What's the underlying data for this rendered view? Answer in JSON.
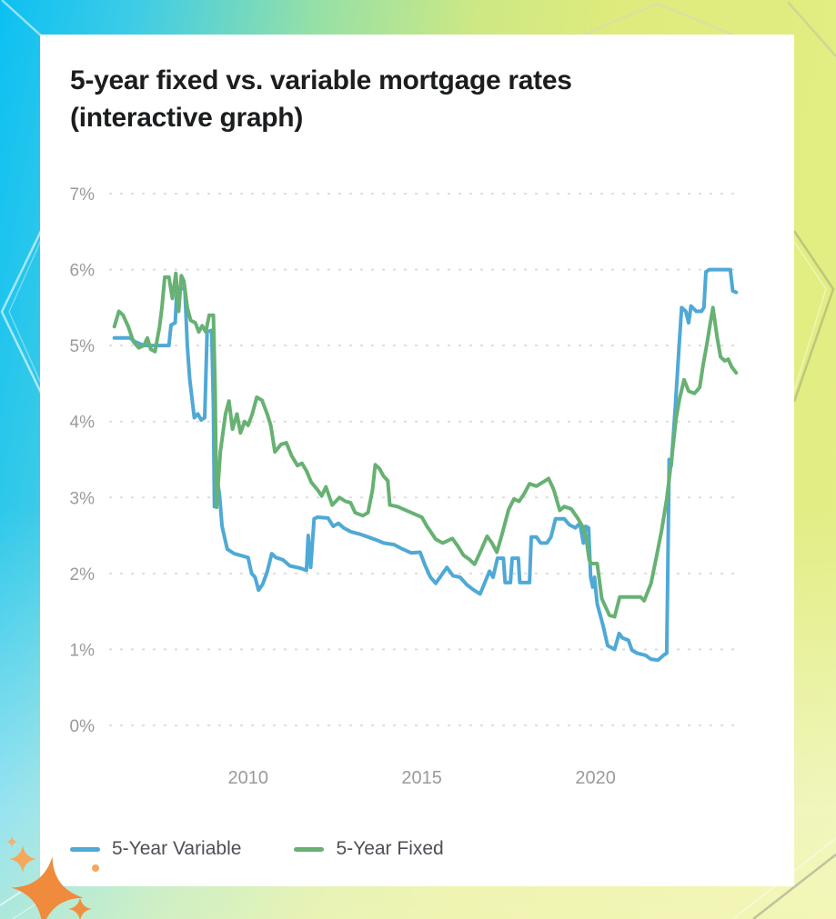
{
  "title": {
    "line1": "5-year fixed vs. variable mortgage rates",
    "line2": "(interactive graph)"
  },
  "colors": {
    "variable_line": "#4fa9d6",
    "fixed_line": "#67b173",
    "grid": "#d9d9d9",
    "axis_label": "#9a9a9f",
    "title_text": "#1b1d1f",
    "legend_text": "#4c5056",
    "card_background": "#ffffff",
    "backdrop_cyan": "#0cc0f2",
    "backdrop_yellow_green": "#dfeb7c",
    "sparkle_orange": "#f08a3c"
  },
  "decorations": {
    "icons": [
      "sparkle-star-icon",
      "chevron-pattern"
    ],
    "description": "gradient backdrop with faceted chevron lines and orange sparkle stars at bottom-left card corner"
  },
  "chart_data": {
    "type": "line",
    "title": "5-year fixed vs. variable mortgage rates (interactive graph)",
    "xlabel": "",
    "ylabel": "",
    "xlim": [
      2006.0,
      2024.2
    ],
    "ylim": [
      0,
      7
    ],
    "grid": "horizontal dashed gridlines at each 1%",
    "legend_position": "bottom-left",
    "yticks": [
      {
        "label": "7%",
        "value": 7
      },
      {
        "label": "6%",
        "value": 6
      },
      {
        "label": "5%",
        "value": 5
      },
      {
        "label": "4%",
        "value": 4
      },
      {
        "label": "3%",
        "value": 3
      },
      {
        "label": "2%",
        "value": 2
      },
      {
        "label": "1%",
        "value": 1
      },
      {
        "label": "0%",
        "value": 0
      }
    ],
    "xticks": [
      {
        "label": "2010",
        "value": 2010
      },
      {
        "label": "2015",
        "value": 2015
      },
      {
        "label": "2020",
        "value": 2020
      }
    ],
    "series": [
      {
        "name": "5-Year Variable",
        "color": "#4fa9d6",
        "points": [
          [
            2006.15,
            5.1
          ],
          [
            2006.6,
            5.1
          ],
          [
            2006.75,
            5.05
          ],
          [
            2007.0,
            5.0
          ],
          [
            2007.55,
            5.0
          ],
          [
            2007.72,
            5.0
          ],
          [
            2007.78,
            5.27
          ],
          [
            2007.9,
            5.3
          ],
          [
            2007.95,
            5.75
          ],
          [
            2008.18,
            5.75
          ],
          [
            2008.25,
            5.0
          ],
          [
            2008.32,
            4.55
          ],
          [
            2008.45,
            4.05
          ],
          [
            2008.55,
            4.1
          ],
          [
            2008.65,
            4.02
          ],
          [
            2008.75,
            4.05
          ],
          [
            2008.82,
            5.18
          ],
          [
            2008.95,
            5.2
          ],
          [
            2009.0,
            4.2
          ],
          [
            2009.03,
            2.88
          ],
          [
            2009.1,
            3.28
          ],
          [
            2009.18,
            3.02
          ],
          [
            2009.25,
            2.62
          ],
          [
            2009.4,
            2.32
          ],
          [
            2009.6,
            2.26
          ],
          [
            2010.0,
            2.21
          ],
          [
            2010.1,
            2.0
          ],
          [
            2010.2,
            1.95
          ],
          [
            2010.3,
            1.78
          ],
          [
            2010.42,
            1.86
          ],
          [
            2010.55,
            2.02
          ],
          [
            2010.68,
            2.26
          ],
          [
            2010.8,
            2.21
          ],
          [
            2011.0,
            2.18
          ],
          [
            2011.2,
            2.1
          ],
          [
            2011.5,
            2.07
          ],
          [
            2011.68,
            2.04
          ],
          [
            2011.73,
            2.5
          ],
          [
            2011.8,
            2.08
          ],
          [
            2011.9,
            2.72
          ],
          [
            2012.0,
            2.74
          ],
          [
            2012.3,
            2.73
          ],
          [
            2012.45,
            2.62
          ],
          [
            2012.6,
            2.66
          ],
          [
            2012.75,
            2.6
          ],
          [
            2012.95,
            2.55
          ],
          [
            2013.2,
            2.52
          ],
          [
            2013.45,
            2.48
          ],
          [
            2013.7,
            2.44
          ],
          [
            2013.9,
            2.4
          ],
          [
            2014.2,
            2.38
          ],
          [
            2014.45,
            2.32
          ],
          [
            2014.7,
            2.27
          ],
          [
            2014.95,
            2.28
          ],
          [
            2015.1,
            2.1
          ],
          [
            2015.25,
            1.95
          ],
          [
            2015.4,
            1.87
          ],
          [
            2015.6,
            2.0
          ],
          [
            2015.72,
            2.08
          ],
          [
            2015.9,
            1.97
          ],
          [
            2016.1,
            1.95
          ],
          [
            2016.3,
            1.85
          ],
          [
            2016.5,
            1.78
          ],
          [
            2016.68,
            1.73
          ],
          [
            2016.95,
            2.03
          ],
          [
            2017.05,
            1.95
          ],
          [
            2017.18,
            2.2
          ],
          [
            2017.35,
            2.2
          ],
          [
            2017.4,
            1.88
          ],
          [
            2017.55,
            1.88
          ],
          [
            2017.6,
            2.2
          ],
          [
            2017.78,
            2.2
          ],
          [
            2017.82,
            1.88
          ],
          [
            2018.1,
            1.88
          ],
          [
            2018.15,
            2.48
          ],
          [
            2018.3,
            2.48
          ],
          [
            2018.42,
            2.4
          ],
          [
            2018.6,
            2.4
          ],
          [
            2018.72,
            2.48
          ],
          [
            2018.85,
            2.72
          ],
          [
            2019.1,
            2.72
          ],
          [
            2019.25,
            2.64
          ],
          [
            2019.42,
            2.6
          ],
          [
            2019.55,
            2.66
          ],
          [
            2019.65,
            2.4
          ],
          [
            2019.72,
            2.62
          ],
          [
            2019.8,
            2.6
          ],
          [
            2019.86,
            1.95
          ],
          [
            2019.92,
            1.82
          ],
          [
            2019.97,
            1.95
          ],
          [
            2020.05,
            1.6
          ],
          [
            2020.22,
            1.31
          ],
          [
            2020.35,
            1.05
          ],
          [
            2020.55,
            1.0
          ],
          [
            2020.68,
            1.21
          ],
          [
            2020.78,
            1.15
          ],
          [
            2020.95,
            1.12
          ],
          [
            2021.05,
            0.99
          ],
          [
            2021.2,
            0.95
          ],
          [
            2021.45,
            0.92
          ],
          [
            2021.6,
            0.87
          ],
          [
            2021.8,
            0.86
          ],
          [
            2021.95,
            0.92
          ],
          [
            2022.05,
            0.95
          ],
          [
            2022.08,
            1.95
          ],
          [
            2022.12,
            3.5
          ],
          [
            2022.18,
            3.42
          ],
          [
            2022.3,
            4.2
          ],
          [
            2022.4,
            4.95
          ],
          [
            2022.48,
            5.5
          ],
          [
            2022.6,
            5.45
          ],
          [
            2022.68,
            5.3
          ],
          [
            2022.75,
            5.52
          ],
          [
            2022.9,
            5.45
          ],
          [
            2023.05,
            5.45
          ],
          [
            2023.12,
            5.5
          ],
          [
            2023.18,
            5.97
          ],
          [
            2023.28,
            6.0
          ],
          [
            2023.88,
            6.0
          ],
          [
            2023.95,
            5.72
          ],
          [
            2024.05,
            5.7
          ]
        ]
      },
      {
        "name": "5-Year Fixed",
        "color": "#67b173",
        "points": [
          [
            2006.15,
            5.25
          ],
          [
            2006.28,
            5.45
          ],
          [
            2006.4,
            5.4
          ],
          [
            2006.55,
            5.25
          ],
          [
            2006.7,
            5.05
          ],
          [
            2006.85,
            4.97
          ],
          [
            2007.0,
            5.0
          ],
          [
            2007.1,
            5.1
          ],
          [
            2007.2,
            4.95
          ],
          [
            2007.32,
            4.92
          ],
          [
            2007.45,
            5.25
          ],
          [
            2007.52,
            5.5
          ],
          [
            2007.6,
            5.9
          ],
          [
            2007.72,
            5.9
          ],
          [
            2007.82,
            5.62
          ],
          [
            2007.92,
            5.95
          ],
          [
            2008.0,
            5.45
          ],
          [
            2008.08,
            5.92
          ],
          [
            2008.15,
            5.85
          ],
          [
            2008.25,
            5.5
          ],
          [
            2008.35,
            5.33
          ],
          [
            2008.48,
            5.3
          ],
          [
            2008.58,
            5.18
          ],
          [
            2008.68,
            5.26
          ],
          [
            2008.78,
            5.18
          ],
          [
            2008.88,
            5.4
          ],
          [
            2009.0,
            5.4
          ],
          [
            2009.05,
            4.4
          ],
          [
            2009.09,
            2.87
          ],
          [
            2009.2,
            3.6
          ],
          [
            2009.35,
            4.1
          ],
          [
            2009.45,
            4.27
          ],
          [
            2009.55,
            3.9
          ],
          [
            2009.68,
            4.1
          ],
          [
            2009.78,
            3.85
          ],
          [
            2009.9,
            4.0
          ],
          [
            2010.0,
            3.95
          ],
          [
            2010.12,
            4.1
          ],
          [
            2010.25,
            4.32
          ],
          [
            2010.4,
            4.28
          ],
          [
            2010.55,
            4.1
          ],
          [
            2010.65,
            3.95
          ],
          [
            2010.77,
            3.6
          ],
          [
            2010.95,
            3.7
          ],
          [
            2011.1,
            3.72
          ],
          [
            2011.25,
            3.55
          ],
          [
            2011.42,
            3.42
          ],
          [
            2011.55,
            3.45
          ],
          [
            2011.68,
            3.35
          ],
          [
            2011.82,
            3.2
          ],
          [
            2012.0,
            3.1
          ],
          [
            2012.12,
            3.02
          ],
          [
            2012.24,
            3.14
          ],
          [
            2012.42,
            2.9
          ],
          [
            2012.63,
            3.0
          ],
          [
            2012.8,
            2.95
          ],
          [
            2012.95,
            2.93
          ],
          [
            2013.08,
            2.8
          ],
          [
            2013.3,
            2.76
          ],
          [
            2013.45,
            2.8
          ],
          [
            2013.58,
            3.1
          ],
          [
            2013.66,
            3.43
          ],
          [
            2013.78,
            3.38
          ],
          [
            2013.9,
            3.28
          ],
          [
            2014.02,
            3.22
          ],
          [
            2014.08,
            2.9
          ],
          [
            2014.3,
            2.88
          ],
          [
            2014.5,
            2.84
          ],
          [
            2014.75,
            2.79
          ],
          [
            2015.0,
            2.74
          ],
          [
            2015.15,
            2.62
          ],
          [
            2015.4,
            2.45
          ],
          [
            2015.6,
            2.4
          ],
          [
            2015.88,
            2.46
          ],
          [
            2016.05,
            2.35
          ],
          [
            2016.2,
            2.24
          ],
          [
            2016.38,
            2.18
          ],
          [
            2016.52,
            2.12
          ],
          [
            2016.7,
            2.3
          ],
          [
            2016.88,
            2.49
          ],
          [
            2017.02,
            2.4
          ],
          [
            2017.16,
            2.28
          ],
          [
            2017.3,
            2.5
          ],
          [
            2017.5,
            2.84
          ],
          [
            2017.65,
            2.98
          ],
          [
            2017.8,
            2.95
          ],
          [
            2017.95,
            3.05
          ],
          [
            2018.1,
            3.18
          ],
          [
            2018.3,
            3.15
          ],
          [
            2018.55,
            3.22
          ],
          [
            2018.65,
            3.25
          ],
          [
            2018.8,
            3.1
          ],
          [
            2018.97,
            2.83
          ],
          [
            2019.1,
            2.88
          ],
          [
            2019.3,
            2.85
          ],
          [
            2019.5,
            2.72
          ],
          [
            2019.65,
            2.6
          ],
          [
            2019.74,
            2.44
          ],
          [
            2019.82,
            2.18
          ],
          [
            2019.88,
            2.13
          ],
          [
            2020.05,
            2.13
          ],
          [
            2020.18,
            1.67
          ],
          [
            2020.4,
            1.45
          ],
          [
            2020.55,
            1.43
          ],
          [
            2020.7,
            1.69
          ],
          [
            2021.1,
            1.69
          ],
          [
            2021.3,
            1.69
          ],
          [
            2021.4,
            1.64
          ],
          [
            2021.6,
            1.87
          ],
          [
            2021.76,
            2.23
          ],
          [
            2021.9,
            2.56
          ],
          [
            2022.05,
            2.98
          ],
          [
            2022.2,
            3.54
          ],
          [
            2022.32,
            4.04
          ],
          [
            2022.42,
            4.3
          ],
          [
            2022.55,
            4.55
          ],
          [
            2022.68,
            4.4
          ],
          [
            2022.85,
            4.37
          ],
          [
            2023.0,
            4.45
          ],
          [
            2023.1,
            4.75
          ],
          [
            2023.2,
            5.0
          ],
          [
            2023.3,
            5.28
          ],
          [
            2023.38,
            5.5
          ],
          [
            2023.5,
            5.11
          ],
          [
            2023.6,
            4.85
          ],
          [
            2023.72,
            4.8
          ],
          [
            2023.82,
            4.82
          ],
          [
            2023.92,
            4.72
          ],
          [
            2024.05,
            4.64
          ]
        ]
      }
    ]
  }
}
